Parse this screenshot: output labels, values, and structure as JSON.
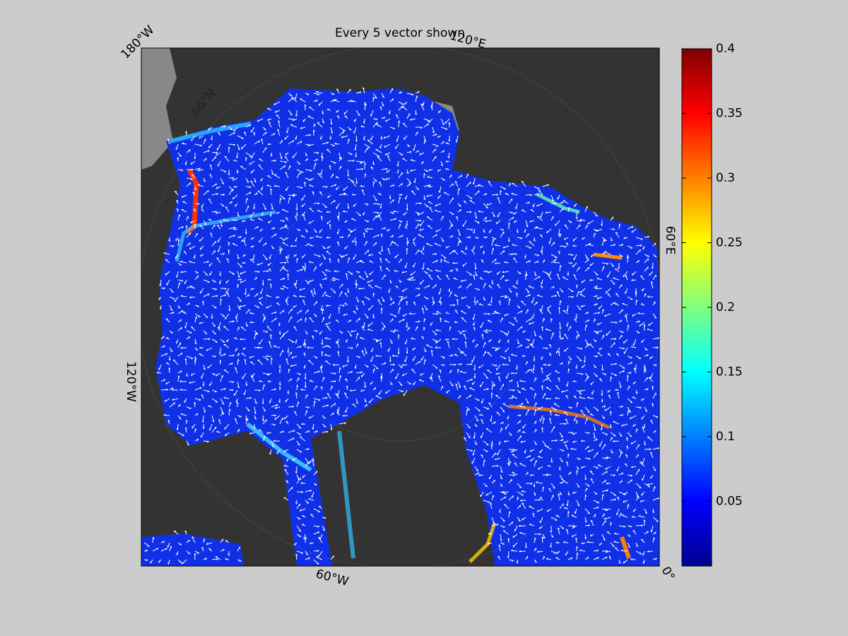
{
  "title": "Every 5 vector shown",
  "map_labels": {
    "top_left": "180°W",
    "top": "120°E",
    "right": "60°E",
    "bottom_right": "0°",
    "bottom": "60°W",
    "left": "120°W",
    "latitude": "86°N"
  },
  "colorbar": {
    "lim": [
      0,
      0.4
    ],
    "ticks": [
      0.05,
      0.1,
      0.15,
      0.2,
      0.25,
      0.3,
      0.35,
      0.4
    ]
  }
}
